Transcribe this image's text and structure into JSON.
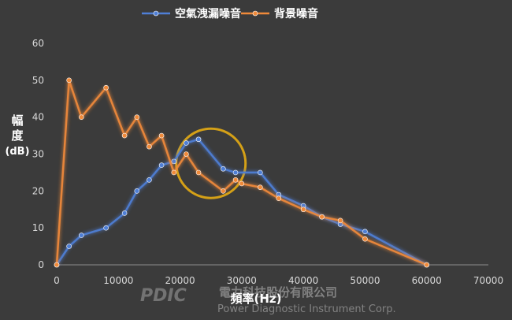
{
  "chart_data": {
    "type": "line",
    "series": [
      {
        "name": "空氣洩漏噪音",
        "color": "#4f7fd6",
        "points": [
          [
            0,
            0
          ],
          [
            2000,
            5
          ],
          [
            4000,
            8
          ],
          [
            8000,
            10
          ],
          [
            11000,
            14
          ],
          [
            13000,
            20
          ],
          [
            15000,
            23
          ],
          [
            17000,
            27
          ],
          [
            19000,
            28
          ],
          [
            21000,
            33
          ],
          [
            23000,
            34
          ],
          [
            27000,
            26
          ],
          [
            29000,
            25
          ],
          [
            33000,
            25
          ],
          [
            36000,
            19
          ],
          [
            40000,
            16
          ],
          [
            43000,
            13
          ],
          [
            46000,
            11
          ],
          [
            50000,
            9
          ],
          [
            60000,
            0
          ]
        ]
      },
      {
        "name": "背景噪音",
        "color": "#f08a3a",
        "points": [
          [
            0,
            0
          ],
          [
            2000,
            50
          ],
          [
            4000,
            40
          ],
          [
            8000,
            48
          ],
          [
            11000,
            35
          ],
          [
            13000,
            40
          ],
          [
            15000,
            32
          ],
          [
            17000,
            35
          ],
          [
            19000,
            25
          ],
          [
            21000,
            30
          ],
          [
            23000,
            25
          ],
          [
            27000,
            20
          ],
          [
            29000,
            23
          ],
          [
            30000,
            22
          ],
          [
            33000,
            21
          ],
          [
            36000,
            18
          ],
          [
            40000,
            15
          ],
          [
            43000,
            13
          ],
          [
            46000,
            12
          ],
          [
            50000,
            7
          ],
          [
            60000,
            0
          ]
        ]
      }
    ],
    "xlim": [
      0,
      70000
    ],
    "ylim": [
      0,
      60
    ],
    "x_ticks": [
      "0",
      "10000",
      "20000",
      "30000",
      "40000",
      "50000",
      "60000",
      "70000"
    ],
    "y_ticks": [
      "0",
      "10",
      "20",
      "30",
      "40",
      "50",
      "60"
    ],
    "xlabel": "頻率(Hz)",
    "ylabel": "幅度",
    "ylabel_unit": "(dB)",
    "legend_position": "top",
    "grid": false,
    "highlight_circle": {
      "x": 25000,
      "y": 27.5,
      "color": "#d4a017"
    }
  },
  "watermark": {
    "logo": "PDIC",
    "company_cn": "電力科技股份有限公司",
    "company_en": "Power Diagnostic Instrument Corp."
  }
}
